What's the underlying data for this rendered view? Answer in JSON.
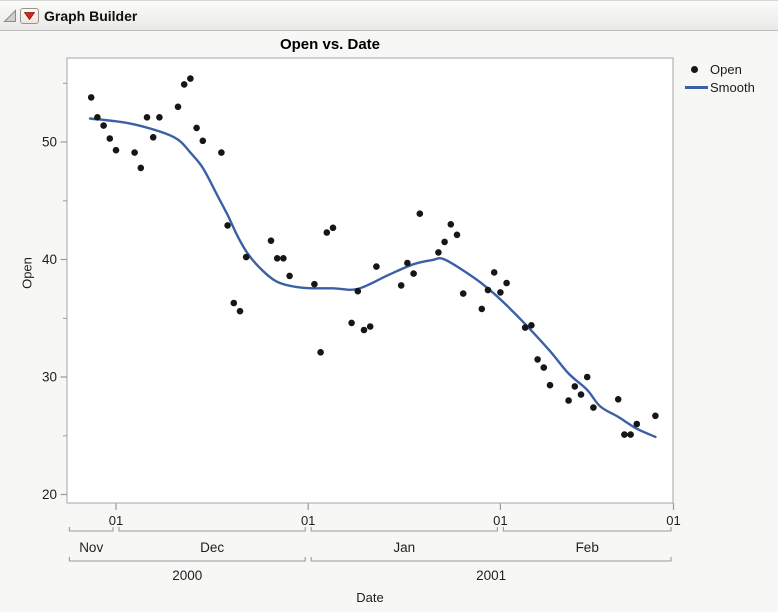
{
  "window": {
    "title": "Graph Builder",
    "disclosure_icon": "open-disclosure-triangle",
    "menu_icon": "red-triangle-menu"
  },
  "colors": {
    "point": "#161616",
    "smooth_line": "#3c60a6",
    "axis_line": "#9a9a9a",
    "plot_border": "#a6a6a6",
    "plot_bg": "#ffffff",
    "panel_bg": "#f7f7f6",
    "text": "#1e1e1e"
  },
  "chart_data": {
    "type": "scatter",
    "title": "Open vs. Date",
    "xlabel": "Date",
    "ylabel": "Open",
    "grid": false,
    "legend_position": "right",
    "y_axis": {
      "range": [
        19.3,
        57.2
      ],
      "major_ticks": [
        20,
        30,
        40,
        50
      ],
      "minor_ticks": [
        25,
        35,
        45,
        55
      ]
    },
    "x_axis": {
      "range_dates": [
        "2000-11-23",
        "2001-03-01"
      ],
      "day_tick_label": "01",
      "month_start_ticks": [
        "2000-12-01",
        "2001-01-01",
        "2001-02-01",
        "2001-03-01"
      ],
      "month_spans": [
        {
          "label": "Nov",
          "start": "2000-11-23",
          "end": "2000-12-01"
        },
        {
          "label": "Dec",
          "start": "2000-12-01",
          "end": "2001-01-01"
        },
        {
          "label": "Jan",
          "start": "2001-01-01",
          "end": "2001-02-01"
        },
        {
          "label": "Feb",
          "start": "2001-02-01",
          "end": "2001-03-01"
        }
      ],
      "year_spans": [
        {
          "label": "2000",
          "start": "2000-11-23",
          "end": "2001-01-01"
        },
        {
          "label": "2001",
          "start": "2001-01-01",
          "end": "2001-03-01"
        }
      ]
    },
    "legend": [
      {
        "label": "Open",
        "marker": "dot",
        "color": "#161616"
      },
      {
        "label": "Smooth",
        "marker": "line",
        "color": "#3c60a6"
      }
    ],
    "series": [
      {
        "name": "Open",
        "type": "points",
        "points": [
          [
            "2000-11-27",
            53.8
          ],
          [
            "2000-11-28",
            52.1
          ],
          [
            "2000-11-29",
            51.4
          ],
          [
            "2000-11-30",
            50.3
          ],
          [
            "2000-12-01",
            49.3
          ],
          [
            "2000-12-04",
            49.1
          ],
          [
            "2000-12-05",
            47.8
          ],
          [
            "2000-12-06",
            52.1
          ],
          [
            "2000-12-07",
            50.4
          ],
          [
            "2000-12-08",
            52.1
          ],
          [
            "2000-12-11",
            53.0
          ],
          [
            "2000-12-12",
            54.9
          ],
          [
            "2000-12-13",
            55.4
          ],
          [
            "2000-12-14",
            51.2
          ],
          [
            "2000-12-15",
            50.1
          ],
          [
            "2000-12-18",
            49.1
          ],
          [
            "2000-12-19",
            42.9
          ],
          [
            "2000-12-20",
            36.3
          ],
          [
            "2000-12-21",
            35.6
          ],
          [
            "2000-12-22",
            40.2
          ],
          [
            "2000-12-26",
            41.6
          ],
          [
            "2000-12-27",
            40.1
          ],
          [
            "2000-12-28",
            40.1
          ],
          [
            "2000-12-29",
            38.6
          ],
          [
            "2001-01-02",
            37.9
          ],
          [
            "2001-01-03",
            32.1
          ],
          [
            "2001-01-04",
            42.3
          ],
          [
            "2001-01-05",
            42.7
          ],
          [
            "2001-01-08",
            34.6
          ],
          [
            "2001-01-09",
            37.3
          ],
          [
            "2001-01-10",
            34.0
          ],
          [
            "2001-01-11",
            34.3
          ],
          [
            "2001-01-12",
            39.4
          ],
          [
            "2001-01-16",
            37.8
          ],
          [
            "2001-01-17",
            39.7
          ],
          [
            "2001-01-18",
            38.8
          ],
          [
            "2001-01-19",
            43.9
          ],
          [
            "2001-01-22",
            40.6
          ],
          [
            "2001-01-23",
            41.5
          ],
          [
            "2001-01-24",
            43.0
          ],
          [
            "2001-01-25",
            42.1
          ],
          [
            "2001-01-26",
            37.1
          ],
          [
            "2001-01-29",
            35.8
          ],
          [
            "2001-01-30",
            37.4
          ],
          [
            "2001-01-31",
            38.9
          ],
          [
            "2001-02-01",
            37.2
          ],
          [
            "2001-02-02",
            38.0
          ],
          [
            "2001-02-05",
            34.2
          ],
          [
            "2001-02-06",
            34.4
          ],
          [
            "2001-02-07",
            31.5
          ],
          [
            "2001-02-08",
            30.8
          ],
          [
            "2001-02-09",
            29.3
          ],
          [
            "2001-02-12",
            28.0
          ],
          [
            "2001-02-13",
            29.2
          ],
          [
            "2001-02-14",
            28.5
          ],
          [
            "2001-02-15",
            30.0
          ],
          [
            "2001-02-16",
            27.4
          ],
          [
            "2001-02-20",
            28.1
          ],
          [
            "2001-02-21",
            25.1
          ],
          [
            "2001-02-22",
            25.1
          ],
          [
            "2001-02-23",
            26.0
          ],
          [
            "2001-02-26",
            26.7
          ]
        ]
      },
      {
        "name": "Smooth",
        "type": "smooth-line",
        "control_points_days_from_2000_12_01": [
          [
            -4.2,
            52.0
          ],
          [
            2,
            51.6
          ],
          [
            7,
            50.9
          ],
          [
            10,
            50.2
          ],
          [
            12,
            49.1
          ],
          [
            14,
            47.8
          ],
          [
            16.3,
            45.5
          ],
          [
            18,
            43.8
          ],
          [
            19.5,
            42.1
          ],
          [
            21,
            40.7
          ],
          [
            23,
            39.4
          ],
          [
            26,
            38.1
          ],
          [
            30,
            37.6
          ],
          [
            35,
            37.55
          ],
          [
            39,
            37.5
          ],
          [
            44,
            38.7
          ],
          [
            48,
            39.6
          ],
          [
            51,
            39.95
          ],
          [
            53,
            40.0
          ],
          [
            57.6,
            38.5
          ],
          [
            60.3,
            37.4
          ],
          [
            63,
            36.1
          ],
          [
            66,
            34.5
          ],
          [
            70,
            32.2
          ],
          [
            73,
            30.3
          ],
          [
            76,
            28.9
          ],
          [
            78.1,
            27.5
          ],
          [
            81,
            26.6
          ],
          [
            84,
            25.6
          ],
          [
            87,
            24.9
          ]
        ]
      }
    ]
  }
}
